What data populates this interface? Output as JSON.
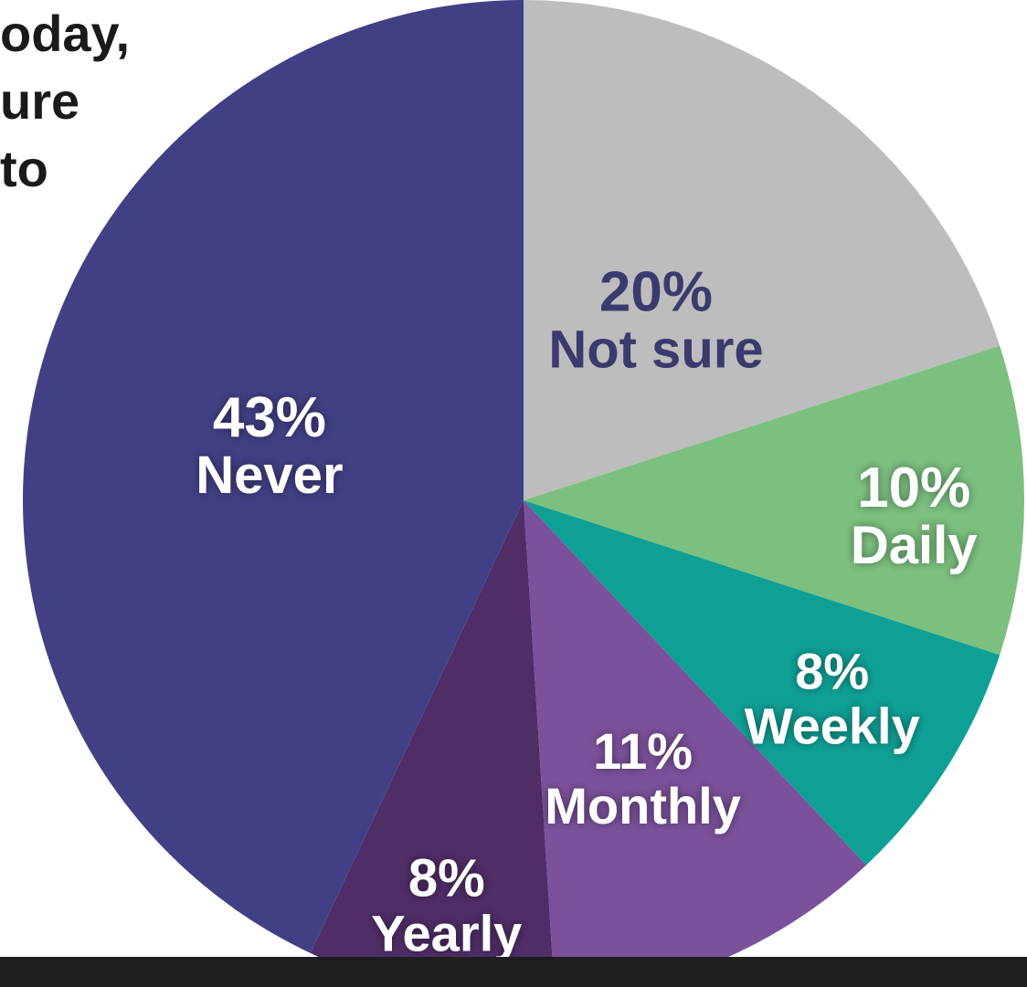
{
  "header": {
    "partial_lines": [
      "oday,",
      "ure",
      "to"
    ]
  },
  "chart_data": {
    "type": "pie",
    "start_angle_deg": 0,
    "direction": "clockwise",
    "slices": [
      {
        "label": "Not sure",
        "value": 20,
        "value_label": "20%",
        "color": "#bdbdbd",
        "text_color": "#3b3a6e"
      },
      {
        "label": "Daily",
        "value": 10,
        "value_label": "10%",
        "color": "#7cc07f",
        "text_color": "#ffffff"
      },
      {
        "label": "Weekly",
        "value": 8,
        "value_label": "8%",
        "color": "#0fa095",
        "text_color": "#ffffff"
      },
      {
        "label": "Monthly",
        "value": 11,
        "value_label": "11%",
        "color": "#7b519b",
        "text_color": "#ffffff"
      },
      {
        "label": "Yearly",
        "value": 8,
        "value_label": "8%",
        "color": "#4f2d66",
        "text_color": "#ffffff"
      },
      {
        "label": "Never",
        "value": 43,
        "value_label": "43%",
        "color": "#424085",
        "text_color": "#ffffff"
      }
    ]
  }
}
